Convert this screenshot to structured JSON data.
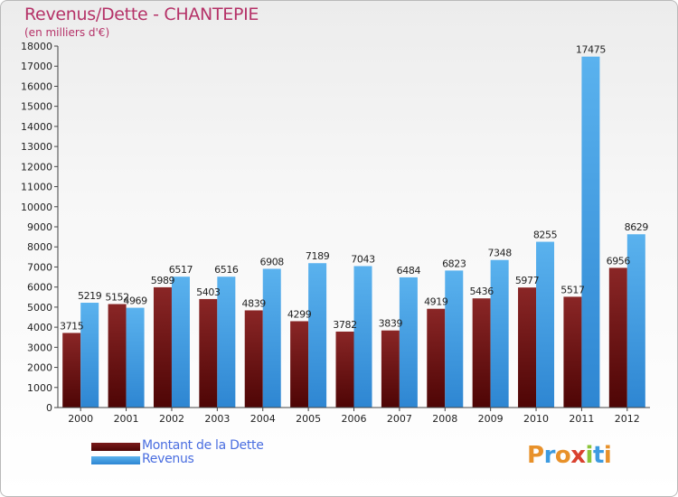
{
  "chart_data": {
    "type": "bar",
    "title": "Revenus/Dette - CHANTEPIE",
    "subtitle": "(en milliers d'€)",
    "categories": [
      "2000",
      "2001",
      "2002",
      "2003",
      "2004",
      "2005",
      "2006",
      "2007",
      "2008",
      "2009",
      "2010",
      "2011",
      "2012"
    ],
    "series": [
      {
        "name": "Montant de la Dette",
        "values": [
          3715,
          5152,
          5989,
          5403,
          4839,
          4299,
          3782,
          3839,
          4919,
          5436,
          5977,
          5517,
          6956
        ],
        "color": "#7a1a1a"
      },
      {
        "name": "Revenus",
        "values": [
          5219,
          4969,
          6517,
          6516,
          6908,
          7189,
          7043,
          6484,
          6823,
          7348,
          8255,
          17475,
          8629
        ],
        "color": "#4aa3e6"
      }
    ],
    "ylim": [
      0,
      18000
    ],
    "yticks": [
      0,
      1000,
      2000,
      3000,
      4000,
      5000,
      6000,
      7000,
      8000,
      9000,
      10000,
      11000,
      12000,
      13000,
      14000,
      15000,
      16000,
      17000,
      18000
    ],
    "grid": false,
    "legend": "bottom-left"
  },
  "logo": {
    "letters": [
      "P",
      "r",
      "o",
      "x",
      "i",
      "t",
      "i"
    ]
  }
}
